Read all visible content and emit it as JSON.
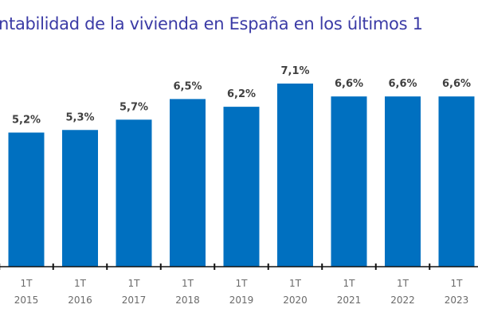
{
  "chart_data": {
    "type": "bar",
    "title": "ntabilidad de la vivienda en España en los últimos 1",
    "categories": [
      [
        "1T",
        "2015"
      ],
      [
        "1T",
        "2016"
      ],
      [
        "1T",
        "2017"
      ],
      [
        "1T",
        "2018"
      ],
      [
        "1T",
        "2019"
      ],
      [
        "1T",
        "2020"
      ],
      [
        "1T",
        "2021"
      ],
      [
        "1T",
        "2022"
      ],
      [
        "1T",
        "2023"
      ]
    ],
    "values": [
      5.2,
      5.3,
      5.7,
      6.5,
      6.2,
      7.1,
      6.6,
      6.6,
      6.6
    ],
    "data_labels": [
      "5,2%",
      "5,3%",
      "5,7%",
      "6,5%",
      "6,2%",
      "7,1%",
      "6,6%",
      "6,6%",
      "6,6%"
    ],
    "xlabel": "",
    "ylabel": "",
    "ylim": [
      0,
      7.5
    ],
    "grid": false,
    "bar_color": "#0070c0",
    "title_color": "#3b3ba6"
  }
}
